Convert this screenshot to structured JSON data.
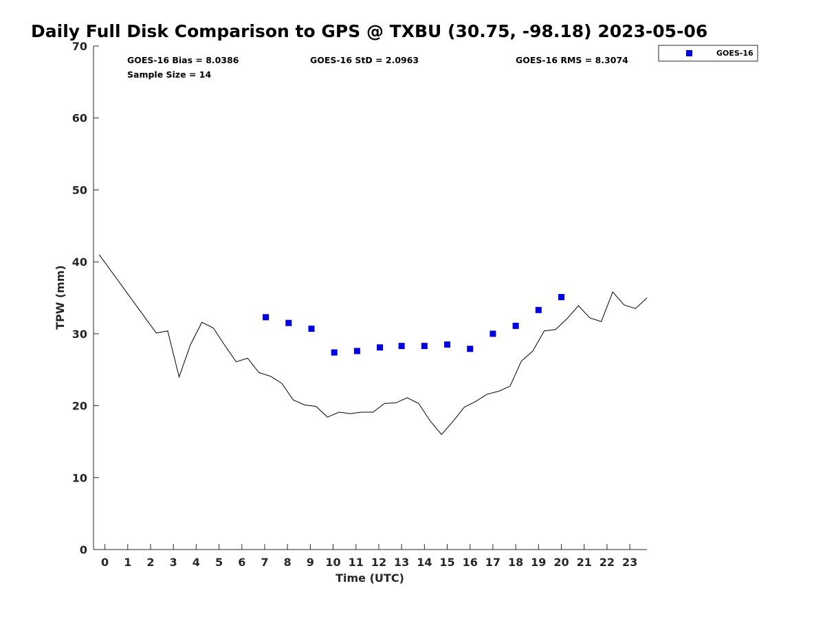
{
  "chart_data": {
    "type": "scatter",
    "title": "Daily Full Disk Comparison to GPS @ TXBU (30.75, -98.18) 2023-05-06",
    "xlabel": "Time (UTC)",
    "ylabel": "TPW (mm)",
    "xlim": [
      -0.5,
      23.75
    ],
    "ylim": [
      0,
      70
    ],
    "xticks": [
      "0",
      "1",
      "2",
      "3",
      "4",
      "5",
      "6",
      "7",
      "8",
      "9",
      "10",
      "11",
      "12",
      "13",
      "14",
      "15",
      "16",
      "17",
      "18",
      "19",
      "20",
      "21",
      "22",
      "23"
    ],
    "yticks": [
      "0",
      "10",
      "20",
      "30",
      "40",
      "50",
      "60",
      "70"
    ],
    "grid": false,
    "legend_position": "outside-top-right",
    "stats": {
      "bias": "GOES-16 Bias = 8.0386",
      "std": "GOES-16 StD = 2.0963",
      "rms": "GOES-16 RMS = 8.3074",
      "sample": "Sample Size = 14"
    },
    "series": [
      {
        "name": "GOES-16",
        "kind": "scatter",
        "marker": "square",
        "color": "#0000dd",
        "points": [
          [
            7.05,
            32.3
          ],
          [
            8.05,
            31.5
          ],
          [
            9.05,
            30.7
          ],
          [
            10.05,
            27.4
          ],
          [
            11.05,
            27.6
          ],
          [
            12.05,
            28.1
          ],
          [
            13.0,
            28.3
          ],
          [
            14.0,
            28.3
          ],
          [
            15.0,
            28.5
          ],
          [
            16.0,
            27.9
          ],
          [
            17.0,
            30.0
          ],
          [
            18.0,
            31.1
          ],
          [
            19.0,
            33.3
          ],
          [
            20.0,
            35.1
          ]
        ]
      },
      {
        "kind": "line",
        "color": "#000000",
        "points": [
          [
            -0.25,
            41.0
          ],
          [
            2.25,
            30.1
          ],
          [
            2.75,
            30.4
          ],
          [
            3.25,
            24.0
          ],
          [
            3.75,
            28.5
          ],
          [
            4.25,
            31.6
          ],
          [
            4.75,
            30.8
          ],
          [
            5.25,
            28.4
          ],
          [
            5.75,
            26.1
          ],
          [
            6.25,
            26.6
          ],
          [
            6.75,
            24.6
          ],
          [
            7.25,
            24.1
          ],
          [
            7.75,
            23.1
          ],
          [
            8.25,
            20.8
          ],
          [
            8.75,
            20.1
          ],
          [
            9.25,
            19.9
          ],
          [
            9.75,
            18.4
          ],
          [
            10.25,
            19.1
          ],
          [
            10.75,
            18.9
          ],
          [
            11.25,
            19.1
          ],
          [
            11.75,
            19.1
          ],
          [
            12.25,
            20.3
          ],
          [
            12.75,
            20.4
          ],
          [
            13.25,
            21.1
          ],
          [
            13.75,
            20.3
          ],
          [
            14.25,
            17.9
          ],
          [
            14.75,
            16.0
          ],
          [
            15.25,
            17.8
          ],
          [
            15.75,
            19.8
          ],
          [
            16.25,
            20.6
          ],
          [
            16.75,
            21.6
          ],
          [
            17.25,
            22.0
          ],
          [
            17.75,
            22.7
          ],
          [
            18.25,
            26.2
          ],
          [
            18.75,
            27.6
          ],
          [
            19.25,
            30.4
          ],
          [
            19.75,
            30.6
          ],
          [
            20.25,
            32.1
          ],
          [
            20.75,
            33.9
          ],
          [
            21.25,
            32.2
          ],
          [
            21.75,
            31.7
          ],
          [
            22.25,
            35.8
          ],
          [
            22.75,
            34.0
          ],
          [
            23.25,
            33.5
          ],
          [
            23.75,
            35.0
          ]
        ]
      }
    ]
  }
}
